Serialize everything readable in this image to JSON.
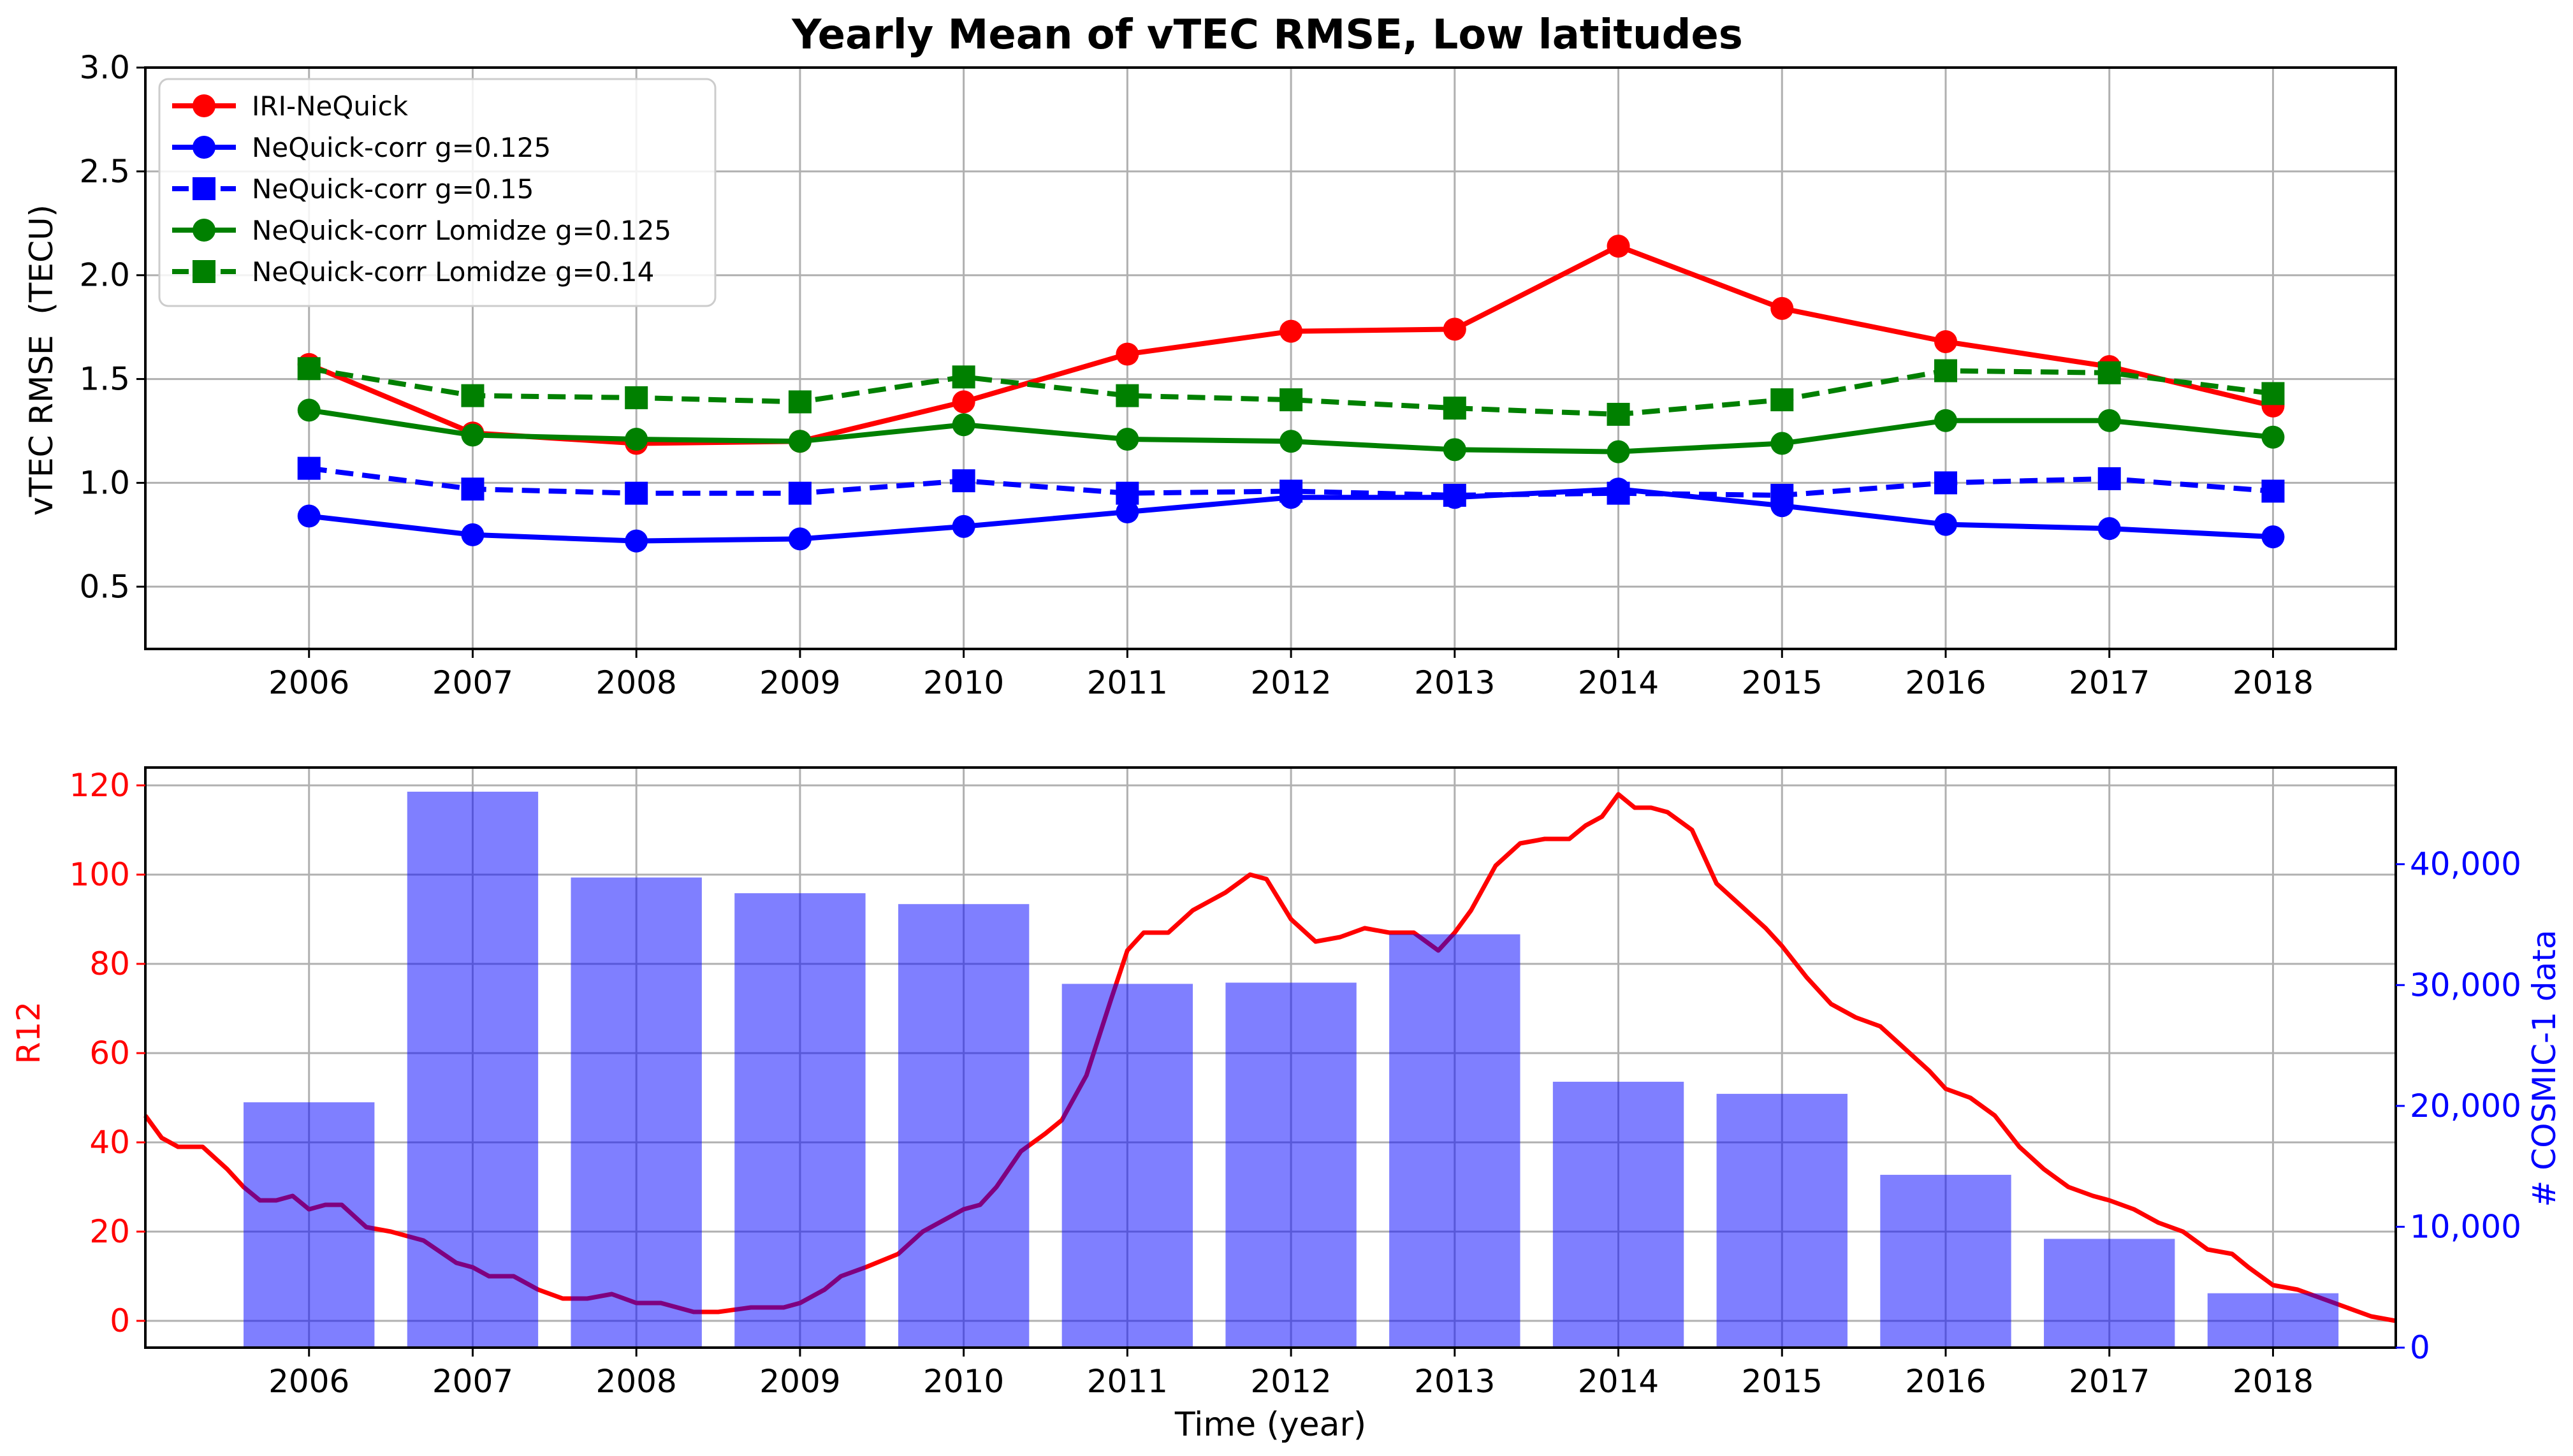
{
  "figure_title": "Yearly Mean of vTEC RMSE, Low latitudes",
  "colors": {
    "red": "#ff0000",
    "blue": "#0000ff",
    "green": "#008000",
    "bar": "#8080ff",
    "grid": "#b0b0b0",
    "overlap": "#800080"
  },
  "chart_data": [
    {
      "type": "line",
      "title": "Yearly Mean of vTEC RMSE, Low latitudes",
      "xlabel": "",
      "ylabel": "vTEC RMSE  (TECU)",
      "x": [
        2006,
        2007,
        2008,
        2009,
        2010,
        2011,
        2012,
        2013,
        2014,
        2015,
        2016,
        2017,
        2018
      ],
      "xtick_labels": [
        "2006",
        "2007",
        "2008",
        "2009",
        "2010",
        "2011",
        "2012",
        "2013",
        "2014",
        "2015",
        "2016",
        "2017",
        "2018"
      ],
      "xlim": [
        2005,
        2018.75
      ],
      "ylim": [
        0.2,
        3.0
      ],
      "ytick_labels": [
        "0.5",
        "1.0",
        "1.5",
        "2.0",
        "2.5",
        "3.0"
      ],
      "yticks": [
        0.5,
        1.0,
        1.5,
        2.0,
        2.5,
        3.0
      ],
      "grid": true,
      "legend_position": "top-left",
      "series": [
        {
          "name": "IRI-NeQuick",
          "color": "red",
          "marker": "circle",
          "linestyle": "solid",
          "values": [
            1.57,
            1.24,
            1.19,
            1.2,
            1.39,
            1.62,
            1.73,
            1.74,
            2.14,
            1.84,
            1.68,
            1.56,
            1.37
          ]
        },
        {
          "name": "NeQuick-corr g=0.125",
          "color": "blue",
          "marker": "circle",
          "linestyle": "solid",
          "values": [
            0.84,
            0.75,
            0.72,
            0.73,
            0.79,
            0.86,
            0.93,
            0.93,
            0.97,
            0.89,
            0.8,
            0.78,
            0.74
          ]
        },
        {
          "name": "NeQuick-corr g=0.15",
          "color": "blue",
          "marker": "square",
          "linestyle": "dashed",
          "values": [
            1.07,
            0.97,
            0.95,
            0.95,
            1.01,
            0.95,
            0.96,
            0.94,
            0.95,
            0.94,
            1.0,
            1.02,
            0.96
          ]
        },
        {
          "name": "NeQuick-corr Lomidze g=0.125",
          "color": "green",
          "marker": "circle",
          "linestyle": "solid",
          "values": [
            1.35,
            1.23,
            1.21,
            1.2,
            1.28,
            1.21,
            1.2,
            1.16,
            1.15,
            1.19,
            1.3,
            1.3,
            1.22
          ]
        },
        {
          "name": "NeQuick-corr Lomidze g=0.14",
          "color": "green",
          "marker": "square",
          "linestyle": "dashed",
          "values": [
            1.55,
            1.42,
            1.41,
            1.39,
            1.51,
            1.42,
            1.4,
            1.36,
            1.33,
            1.4,
            1.54,
            1.53,
            1.43
          ]
        }
      ]
    },
    {
      "type": "bar",
      "title": "",
      "xlabel": "Time (year)",
      "ylabel_left": "R12",
      "ylabel_right": "# COSMIC-1 data",
      "xtick_labels": [
        "2006",
        "2007",
        "2008",
        "2009",
        "2010",
        "2011",
        "2012",
        "2013",
        "2014",
        "2015",
        "2016",
        "2017",
        "2018"
      ],
      "xlim": [
        2005,
        2018.75
      ],
      "ylim_left": [
        -6,
        124
      ],
      "yticks_left": [
        0,
        20,
        40,
        60,
        80,
        100,
        120
      ],
      "ytick_labels_left": [
        "0",
        "20",
        "40",
        "60",
        "80",
        "100",
        "120"
      ],
      "ylim_right": [
        0,
        48000
      ],
      "yticks_right": [
        0,
        10000,
        20000,
        30000,
        40000
      ],
      "ytick_labels_right": [
        "0",
        "10,000",
        "20,000",
        "30,000",
        "40,000"
      ],
      "grid": true,
      "bars": {
        "name": "# COSMIC-1 data",
        "color": "bar",
        "x": [
          2006,
          2007,
          2008,
          2009,
          2010,
          2011,
          2012,
          2013,
          2014,
          2015,
          2016,
          2017,
          2018
        ],
        "values": [
          20300,
          46000,
          38900,
          37600,
          36700,
          30100,
          30200,
          34200,
          22000,
          21000,
          14300,
          9000,
          4500
        ]
      },
      "line": {
        "name": "R12",
        "color": "red",
        "x": [
          2005.0,
          2005.1,
          2005.2,
          2005.35,
          2005.5,
          2005.6,
          2005.7,
          2005.8,
          2005.9,
          2006.0,
          2006.1,
          2006.2,
          2006.35,
          2006.5,
          2006.7,
          2006.9,
          2007.0,
          2007.1,
          2007.25,
          2007.4,
          2007.55,
          2007.7,
          2007.85,
          2008.0,
          2008.15,
          2008.25,
          2008.35,
          2008.5,
          2008.7,
          2008.9,
          2009.0,
          2009.15,
          2009.25,
          2009.4,
          2009.6,
          2009.75,
          2009.9,
          2010.0,
          2010.1,
          2010.2,
          2010.35,
          2010.5,
          2010.6,
          2010.75,
          2010.9,
          2011.0,
          2011.1,
          2011.25,
          2011.4,
          2011.6,
          2011.75,
          2011.85,
          2012.0,
          2012.15,
          2012.3,
          2012.45,
          2012.6,
          2012.75,
          2012.9,
          2013.0,
          2013.1,
          2013.25,
          2013.4,
          2013.55,
          2013.7,
          2013.8,
          2013.9,
          2014.0,
          2014.1,
          2014.2,
          2014.3,
          2014.45,
          2014.6,
          2014.75,
          2014.9,
          2015.0,
          2015.15,
          2015.3,
          2015.45,
          2015.6,
          2015.75,
          2015.9,
          2016.0,
          2016.15,
          2016.3,
          2016.45,
          2016.6,
          2016.75,
          2016.9,
          2017.0,
          2017.15,
          2017.3,
          2017.45,
          2017.6,
          2017.75,
          2017.85,
          2018.0,
          2018.15,
          2018.3,
          2018.45,
          2018.6,
          2018.75
        ],
        "values": [
          46,
          41,
          39,
          39,
          34,
          30,
          27,
          27,
          28,
          25,
          26,
          26,
          21,
          20,
          18,
          13,
          12,
          10,
          10,
          7,
          5,
          5,
          6,
          4,
          4,
          3,
          2,
          2,
          3,
          3,
          4,
          7,
          10,
          12,
          15,
          20,
          23,
          25,
          26,
          30,
          38,
          42,
          45,
          55,
          72,
          83,
          87,
          87,
          92,
          96,
          100,
          99,
          90,
          85,
          86,
          88,
          87,
          87,
          83,
          87,
          92,
          102,
          107,
          108,
          108,
          111,
          113,
          118,
          115,
          115,
          114,
          110,
          98,
          93,
          88,
          84,
          77,
          71,
          68,
          66,
          61,
          56,
          52,
          50,
          46,
          39,
          34,
          30,
          28,
          27,
          25,
          22,
          20,
          16,
          15,
          12,
          8,
          7,
          5,
          3,
          1,
          0
        ]
      }
    }
  ]
}
